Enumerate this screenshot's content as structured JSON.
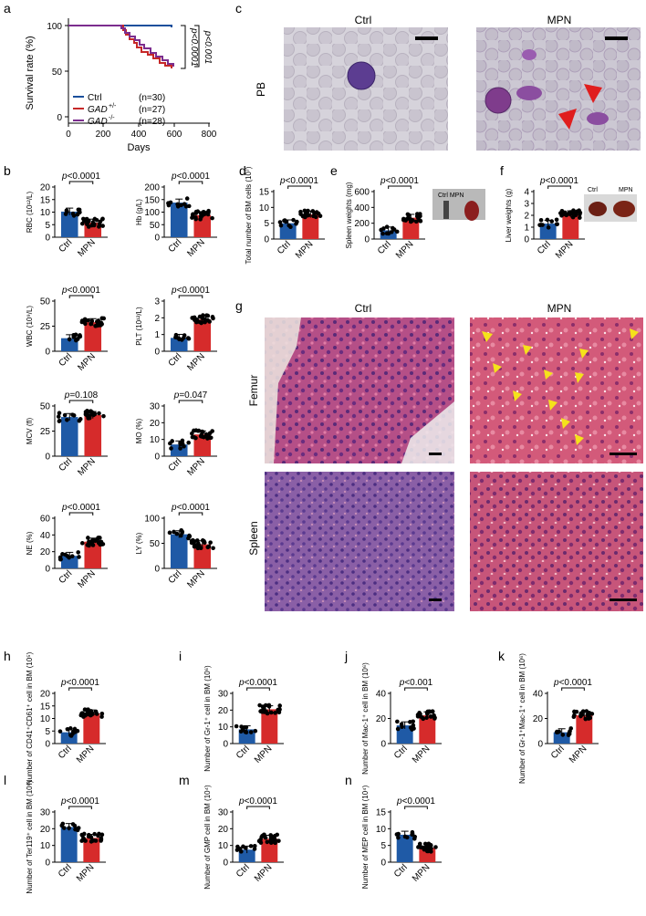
{
  "panel_letters": {
    "a": "a",
    "b": "b",
    "c": "c",
    "d": "d",
    "e": "e",
    "f": "f",
    "g": "g",
    "h": "h",
    "i": "i",
    "j": "j",
    "k": "k",
    "l": "l",
    "m": "m",
    "n": "n"
  },
  "survival": {
    "ylabel": "Survival rate (%)",
    "xlabel": "Days",
    "pvals": [
      "p<0.0001",
      "p<0.001"
    ],
    "legend": [
      {
        "name": "Ctrl",
        "sup": "",
        "n": "(n=30)",
        "color": "#1a4f9c"
      },
      {
        "name": "GAD",
        "sup": "+/-",
        "n": "(n=27)",
        "color": "#c62828"
      },
      {
        "name": "GAD",
        "sup": "-/-",
        "n": "(n=28)",
        "color": "#7b2d8e"
      }
    ]
  },
  "micro": {
    "c_ctrl": "Ctrl",
    "c_mpn": "MPN",
    "c_row": "PB",
    "g_ctrl": "Ctrl",
    "g_mpn": "MPN",
    "g_row1": "Femur",
    "g_row2": "Spleen",
    "inset_e": "Ctrl  MPN",
    "inset_f_ctrl": "Ctrl",
    "inset_f_mpn": "MPN"
  },
  "colors": {
    "ctrl": "#1f5aa6",
    "mpn": "#d62b2b"
  },
  "chart_data": [
    {
      "id": "b1",
      "type": "bar",
      "categories": [
        "Ctrl",
        "MPN"
      ],
      "values": [
        10.2,
        5.8
      ],
      "ylabel": "RBC (10¹²/L)",
      "ylim": [
        0,
        20
      ],
      "ticks": [
        0,
        5,
        10,
        15,
        20
      ],
      "p": "p<0.0001"
    },
    {
      "id": "b2",
      "type": "bar",
      "categories": [
        "Ctrl",
        "MPN"
      ],
      "values": [
        138,
        88
      ],
      "ylabel": "Hb (g/L)",
      "ylim": [
        0,
        200
      ],
      "ticks": [
        0,
        50,
        100,
        150,
        200
      ],
      "p": "p<0.0001"
    },
    {
      "id": "b3",
      "type": "bar",
      "categories": [
        "Ctrl",
        "MPN"
      ],
      "values": [
        13,
        29
      ],
      "ylabel": "WBC (10⁹/L)",
      "ylim": [
        0,
        50
      ],
      "ticks": [
        0,
        25,
        50
      ],
      "p": "p<0.0001"
    },
    {
      "id": "b4",
      "type": "bar",
      "categories": [
        "Ctrl",
        "MPN"
      ],
      "values": [
        0.8,
        1.9
      ],
      "ylabel": "PLT (10¹²/L)",
      "ylim": [
        0,
        3
      ],
      "ticks": [
        0,
        1,
        2,
        3
      ],
      "p": "p<0.0001"
    },
    {
      "id": "b5",
      "type": "bar",
      "categories": [
        "Ctrl",
        "MPN"
      ],
      "values": [
        39,
        41
      ],
      "ylabel": "MCV (fl)",
      "ylim": [
        0,
        50
      ],
      "ticks": [
        0,
        25,
        50
      ],
      "p": "p=0.108"
    },
    {
      "id": "b6",
      "type": "bar",
      "categories": [
        "Ctrl",
        "MPN"
      ],
      "values": [
        7,
        13
      ],
      "ylabel": "MO (%)",
      "ylim": [
        0,
        30
      ],
      "ticks": [
        0,
        10,
        20,
        30
      ],
      "p": "p=0.047"
    },
    {
      "id": "b7",
      "type": "bar",
      "categories": [
        "Ctrl",
        "MPN"
      ],
      "values": [
        15,
        32
      ],
      "ylabel": "NE (%)",
      "ylim": [
        0,
        60
      ],
      "ticks": [
        0,
        20,
        40,
        60
      ],
      "p": "p<0.0001"
    },
    {
      "id": "b8",
      "type": "bar",
      "categories": [
        "Ctrl",
        "MPN"
      ],
      "values": [
        68,
        48
      ],
      "ylabel": "LY (%)",
      "ylim": [
        0,
        100
      ],
      "ticks": [
        0,
        50,
        100
      ],
      "p": "p<0.0001"
    },
    {
      "id": "d",
      "type": "bar",
      "categories": [
        "Ctrl",
        "MPN"
      ],
      "values": [
        5,
        7.8
      ],
      "ylabel": "Total number of BM cells (10⁷)",
      "ylim": [
        0,
        15
      ],
      "ticks": [
        0,
        5,
        10,
        15
      ],
      "p": "p<0.0001"
    },
    {
      "id": "e",
      "type": "bar",
      "categories": [
        "Ctrl",
        "MPN"
      ],
      "values": [
        110,
        270
      ],
      "ylabel": "Spleen weights (mg)",
      "ylim": [
        0,
        600
      ],
      "ticks": [
        0,
        200,
        400,
        600
      ],
      "p": "p<0.0001"
    },
    {
      "id": "f",
      "type": "bar",
      "categories": [
        "Ctrl",
        "MPN"
      ],
      "values": [
        1.3,
        2.1
      ],
      "ylabel": "Liver weights (g)",
      "ylim": [
        0,
        4
      ],
      "ticks": [
        0,
        1,
        2,
        3,
        4
      ],
      "p": "p<0.0001"
    },
    {
      "id": "h",
      "type": "bar",
      "categories": [
        "Ctrl",
        "MPN"
      ],
      "values": [
        4.5,
        12
      ],
      "ylabel": "Number of CD41⁺CD61⁺ cell in BM (10⁵)",
      "ylim": [
        0,
        20
      ],
      "ticks": [
        0,
        5,
        10,
        15,
        20
      ],
      "p": "p<0.0001"
    },
    {
      "id": "i",
      "type": "bar",
      "categories": [
        "Ctrl",
        "MPN"
      ],
      "values": [
        8.5,
        20.5
      ],
      "ylabel": "Number of Gr-1⁺ cell in BM (10⁶)",
      "ylim": [
        0,
        30
      ],
      "ticks": [
        0,
        10,
        20,
        30
      ],
      "p": "p<0.0001"
    },
    {
      "id": "j",
      "type": "bar",
      "categories": [
        "Ctrl",
        "MPN"
      ],
      "values": [
        14.5,
        22.5
      ],
      "ylabel": "Number of Mac-1⁺ cell in BM (10⁶)",
      "ylim": [
        0,
        40
      ],
      "ticks": [
        0,
        20,
        40
      ],
      "p": "p<0.001"
    },
    {
      "id": "k",
      "type": "bar",
      "categories": [
        "Ctrl",
        "MPN"
      ],
      "values": [
        9,
        22.5
      ],
      "ylabel": "Number of Gr-1⁺Mac-1⁺ cell in BM (10⁶)",
      "ylim": [
        0,
        40
      ],
      "ticks": [
        0,
        20,
        40
      ],
      "p": "p<0.0001"
    },
    {
      "id": "l",
      "type": "bar",
      "categories": [
        "Ctrl",
        "MPN"
      ],
      "values": [
        21,
        14.5
      ],
      "ylabel": "Number of Ter119⁺ cell in BM (10⁶)",
      "ylim": [
        0,
        30
      ],
      "ticks": [
        0,
        10,
        20,
        30
      ],
      "p": "p<0.0001"
    },
    {
      "id": "m",
      "type": "bar",
      "categories": [
        "Ctrl",
        "MPN"
      ],
      "values": [
        7.5,
        14
      ],
      "ylabel": "Number of GMP cell in BM (10⁴)",
      "ylim": [
        0,
        30
      ],
      "ticks": [
        0,
        10,
        20,
        30
      ],
      "p": "p<0.0001"
    },
    {
      "id": "n",
      "type": "bar",
      "categories": [
        "Ctrl",
        "MPN"
      ],
      "values": [
        8.2,
        4.3
      ],
      "ylabel": "Number of MEP cell in BM (10⁴)",
      "ylim": [
        0,
        15
      ],
      "ticks": [
        0,
        5,
        10,
        15
      ],
      "p": "p<0.0001"
    }
  ]
}
